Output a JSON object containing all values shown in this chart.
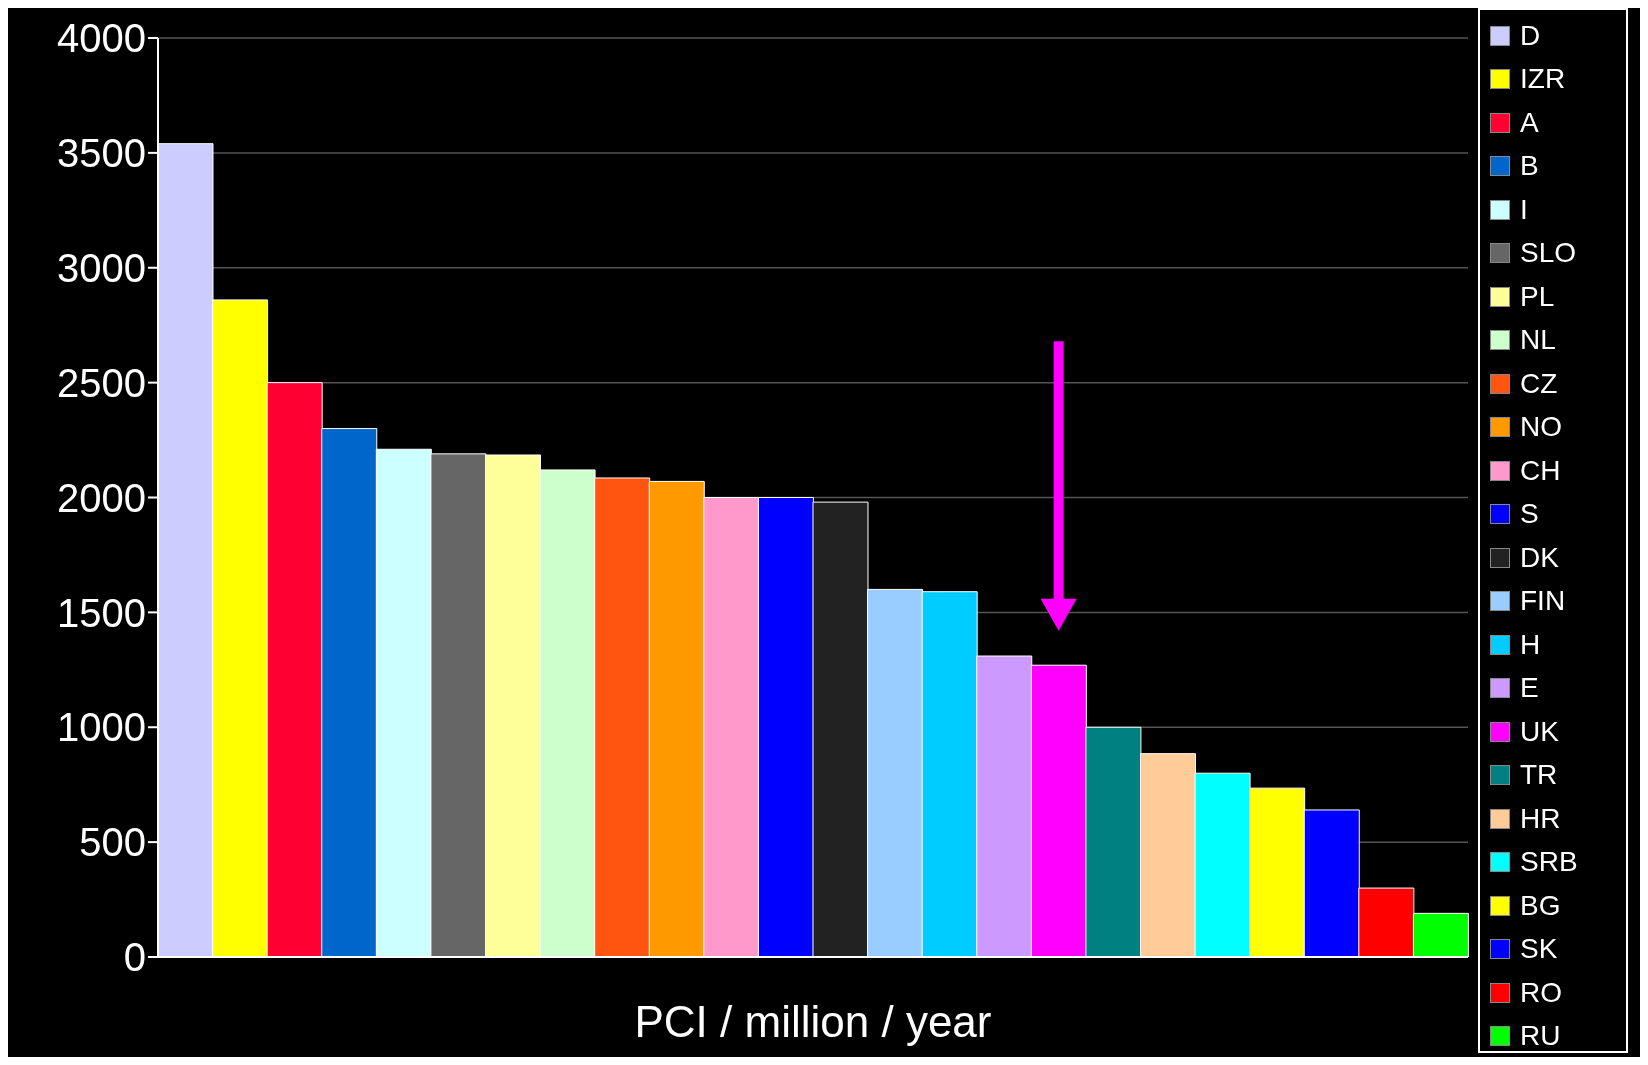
{
  "chart_data": {
    "type": "bar",
    "xlabel": "PCI / million / year",
    "stacked": true,
    "grid": "y",
    "legend": "right",
    "ylim": [
      0,
      4000
    ],
    "yticks": [
      0,
      500,
      1000,
      1500,
      2000,
      2500,
      3000,
      3500,
      4000
    ],
    "categories": [
      null,
      null,
      null,
      null,
      null,
      null,
      null,
      null,
      null,
      null,
      null,
      null,
      null,
      null,
      null,
      null,
      null,
      null,
      null,
      null,
      null,
      null,
      null,
      null
    ],
    "series": [
      {
        "name": "D",
        "color": "#ccccff",
        "values": [
          3540,
          null,
          null,
          null,
          null,
          null,
          null,
          null,
          null,
          null,
          null,
          null,
          null,
          null,
          null,
          null,
          null,
          null,
          null,
          null,
          null,
          null,
          null,
          null
        ]
      },
      {
        "name": "IZR",
        "color": "#ffff00",
        "values": [
          null,
          2860,
          null,
          null,
          null,
          null,
          null,
          null,
          null,
          null,
          null,
          null,
          null,
          null,
          null,
          null,
          null,
          null,
          null,
          null,
          null,
          null,
          null,
          null
        ]
      },
      {
        "name": "A",
        "color": "#ff0033",
        "values": [
          null,
          null,
          2500,
          null,
          null,
          null,
          null,
          null,
          null,
          null,
          null,
          null,
          null,
          null,
          null,
          null,
          null,
          null,
          null,
          null,
          null,
          null,
          null,
          null
        ]
      },
      {
        "name": "B",
        "color": "#0066cc",
        "values": [
          null,
          null,
          null,
          2300,
          null,
          null,
          null,
          null,
          null,
          null,
          null,
          null,
          null,
          null,
          null,
          null,
          null,
          null,
          null,
          null,
          null,
          null,
          null,
          null
        ]
      },
      {
        "name": "I",
        "color": "#ccffff",
        "values": [
          null,
          null,
          null,
          null,
          2210,
          null,
          null,
          null,
          null,
          null,
          null,
          null,
          null,
          null,
          null,
          null,
          null,
          null,
          null,
          null,
          null,
          null,
          null,
          null
        ]
      },
      {
        "name": "SLO",
        "color": "#666666",
        "values": [
          null,
          null,
          null,
          null,
          null,
          2190,
          null,
          null,
          null,
          null,
          null,
          null,
          null,
          null,
          null,
          null,
          null,
          null,
          null,
          null,
          null,
          null,
          null,
          null
        ]
      },
      {
        "name": "PL",
        "color": "#ffff99",
        "values": [
          null,
          null,
          null,
          null,
          null,
          null,
          2185,
          null,
          null,
          null,
          null,
          null,
          null,
          null,
          null,
          null,
          null,
          null,
          null,
          null,
          null,
          null,
          null,
          null
        ]
      },
      {
        "name": "NL",
        "color": "#ccffcc",
        "values": [
          null,
          null,
          null,
          null,
          null,
          null,
          null,
          2120,
          null,
          null,
          null,
          null,
          null,
          null,
          null,
          null,
          null,
          null,
          null,
          null,
          null,
          null,
          null,
          null
        ]
      },
      {
        "name": "CZ",
        "color": "#ff5511",
        "values": [
          null,
          null,
          null,
          null,
          null,
          null,
          null,
          null,
          2085,
          null,
          null,
          null,
          null,
          null,
          null,
          null,
          null,
          null,
          null,
          null,
          null,
          null,
          null,
          null
        ]
      },
      {
        "name": "NO",
        "color": "#ff9900",
        "values": [
          null,
          null,
          null,
          null,
          null,
          null,
          null,
          null,
          null,
          2070,
          null,
          null,
          null,
          null,
          null,
          null,
          null,
          null,
          null,
          null,
          null,
          null,
          null,
          null
        ]
      },
      {
        "name": "CH",
        "color": "#ff99cc",
        "values": [
          null,
          null,
          null,
          null,
          null,
          null,
          null,
          null,
          null,
          null,
          2000,
          null,
          null,
          null,
          null,
          null,
          null,
          null,
          null,
          null,
          null,
          null,
          null,
          null
        ]
      },
      {
        "name": "S",
        "color": "#0000ff",
        "values": [
          null,
          null,
          null,
          null,
          null,
          null,
          null,
          null,
          null,
          null,
          null,
          2000,
          null,
          null,
          null,
          null,
          null,
          null,
          null,
          null,
          null,
          null,
          null,
          null
        ]
      },
      {
        "name": "DK",
        "color": "#222222",
        "values": [
          null,
          null,
          null,
          null,
          null,
          null,
          null,
          null,
          null,
          null,
          null,
          null,
          1980,
          null,
          null,
          null,
          null,
          null,
          null,
          null,
          null,
          null,
          null,
          null
        ]
      },
      {
        "name": "FIN",
        "color": "#99ccff",
        "values": [
          null,
          null,
          null,
          null,
          null,
          null,
          null,
          null,
          null,
          null,
          null,
          null,
          null,
          1600,
          null,
          null,
          null,
          null,
          null,
          null,
          null,
          null,
          null,
          null
        ]
      },
      {
        "name": "H",
        "color": "#00ccff",
        "values": [
          null,
          null,
          null,
          null,
          null,
          null,
          null,
          null,
          null,
          null,
          null,
          null,
          null,
          null,
          1590,
          null,
          null,
          null,
          null,
          null,
          null,
          null,
          null,
          null
        ]
      },
      {
        "name": "E",
        "color": "#cc99ff",
        "values": [
          null,
          null,
          null,
          null,
          null,
          null,
          null,
          null,
          null,
          null,
          null,
          null,
          null,
          null,
          null,
          1310,
          null,
          null,
          null,
          null,
          null,
          null,
          null,
          null
        ]
      },
      {
        "name": "UK",
        "color": "#ff00ff",
        "values": [
          null,
          null,
          null,
          null,
          null,
          null,
          null,
          null,
          null,
          null,
          null,
          null,
          null,
          null,
          null,
          null,
          1270,
          null,
          null,
          null,
          null,
          null,
          null,
          null
        ]
      },
      {
        "name": "TR",
        "color": "#008080",
        "values": [
          null,
          null,
          null,
          null,
          null,
          null,
          null,
          null,
          null,
          null,
          null,
          null,
          null,
          null,
          null,
          null,
          null,
          1000,
          null,
          null,
          null,
          null,
          null,
          null
        ]
      },
      {
        "name": "HR",
        "color": "#ffcc99",
        "values": [
          null,
          null,
          null,
          null,
          null,
          null,
          null,
          null,
          null,
          null,
          null,
          null,
          null,
          null,
          null,
          null,
          null,
          null,
          885,
          null,
          null,
          null,
          null,
          null
        ]
      },
      {
        "name": "SRB",
        "color": "#00ffff",
        "values": [
          null,
          null,
          null,
          null,
          null,
          null,
          null,
          null,
          null,
          null,
          null,
          null,
          null,
          null,
          null,
          null,
          null,
          null,
          null,
          800,
          null,
          null,
          null,
          null
        ]
      },
      {
        "name": "BG",
        "color": "#ffff00",
        "values": [
          null,
          null,
          null,
          null,
          null,
          null,
          null,
          null,
          null,
          null,
          null,
          null,
          null,
          null,
          null,
          null,
          null,
          null,
          null,
          null,
          735,
          null,
          null,
          null
        ]
      },
      {
        "name": "SK",
        "color": "#0000ff",
        "values": [
          null,
          null,
          null,
          null,
          null,
          null,
          null,
          null,
          null,
          null,
          null,
          null,
          null,
          null,
          null,
          null,
          null,
          null,
          null,
          null,
          null,
          640,
          null,
          null
        ]
      },
      {
        "name": "RO",
        "color": "#ff0000",
        "values": [
          null,
          null,
          null,
          null,
          null,
          null,
          null,
          null,
          null,
          null,
          null,
          null,
          null,
          null,
          null,
          null,
          null,
          null,
          null,
          null,
          null,
          null,
          300,
          null
        ]
      },
      {
        "name": "RU",
        "color": "#00ff00",
        "values": [
          null,
          null,
          null,
          null,
          null,
          null,
          null,
          null,
          null,
          null,
          null,
          null,
          null,
          null,
          null,
          null,
          null,
          null,
          null,
          null,
          null,
          null,
          null,
          190
        ]
      }
    ]
  }
}
